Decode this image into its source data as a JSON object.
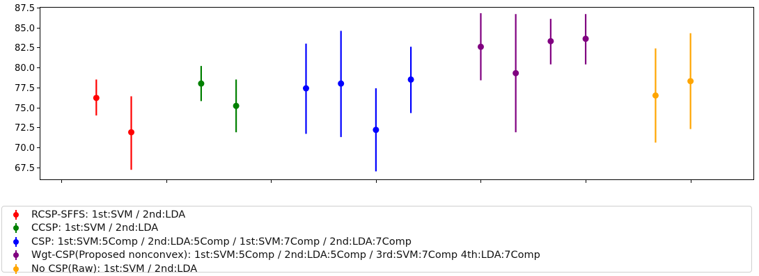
{
  "chart_data": {
    "type": "errorbar",
    "title": "",
    "xlabel": "",
    "ylabel": "",
    "ylim": [
      66.0,
      87.5
    ],
    "yticks": [
      "67.5",
      "70.0",
      "72.5",
      "75.0",
      "77.5",
      "80.0",
      "82.5",
      "85.0",
      "87.5"
    ],
    "xticks_count": 7,
    "xtick_labels": [],
    "grid": false,
    "legend_position": "below",
    "series": [
      {
        "name": "RCSP-SFFS: 1st:SVM / 2nd:LDA",
        "color": "#ff0000",
        "points": [
          {
            "x": 1,
            "y": 76.2,
            "low": 74.0,
            "high": 78.5
          },
          {
            "x": 2,
            "y": 71.9,
            "low": 67.2,
            "high": 76.4
          }
        ]
      },
      {
        "name": "CCSP: 1st:SVM / 2nd:LDA",
        "color": "#008000",
        "points": [
          {
            "x": 4,
            "y": 78.0,
            "low": 75.8,
            "high": 80.2
          },
          {
            "x": 5,
            "y": 75.2,
            "low": 71.9,
            "high": 78.5
          }
        ]
      },
      {
        "name": "CSP: 1st:SVM:5Comp / 2nd:LDA:5Comp / 1st:SVM:7Comp / 2nd:LDA:7Comp",
        "color": "#0000ff",
        "points": [
          {
            "x": 7,
            "y": 77.4,
            "low": 71.7,
            "high": 83.0
          },
          {
            "x": 8,
            "y": 78.0,
            "low": 71.3,
            "high": 84.6
          },
          {
            "x": 9,
            "y": 72.2,
            "low": 67.0,
            "high": 77.4
          },
          {
            "x": 10,
            "y": 78.5,
            "low": 74.3,
            "high": 82.6
          }
        ]
      },
      {
        "name": "Wgt-CSP(Proposed nonconvex): 1st:SVM:5Comp / 2nd:LDA:5Comp / 3rd:SVM:7Comp  4th:LDA:7Comp",
        "color": "#800080",
        "points": [
          {
            "x": 12,
            "y": 82.6,
            "low": 78.4,
            "high": 86.8
          },
          {
            "x": 13,
            "y": 79.3,
            "low": 71.9,
            "high": 86.7
          },
          {
            "x": 14,
            "y": 83.3,
            "low": 80.4,
            "high": 86.1
          },
          {
            "x": 15,
            "y": 83.6,
            "low": 80.4,
            "high": 86.7
          }
        ]
      },
      {
        "name": "No CSP(Raw): 1st:SVM / 2nd:LDA",
        "color": "#ffa500",
        "points": [
          {
            "x": 17,
            "y": 76.5,
            "low": 70.6,
            "high": 82.4
          },
          {
            "x": 18,
            "y": 78.3,
            "low": 72.3,
            "high": 84.3
          }
        ]
      }
    ]
  }
}
